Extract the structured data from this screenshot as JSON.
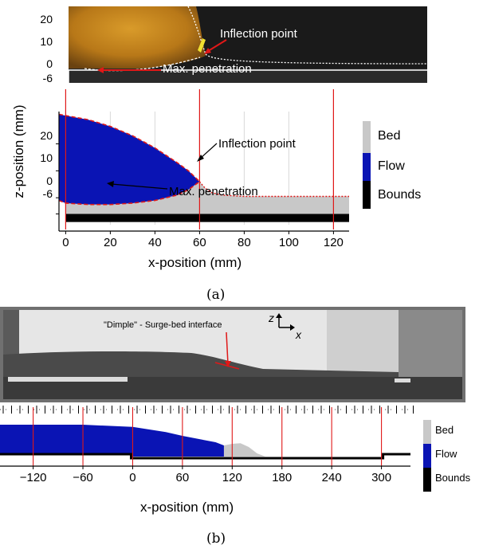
{
  "panel_a": {
    "caption": "(a)",
    "photo": {
      "yticks": [
        "20",
        "10",
        "0",
        "-6"
      ],
      "annotations": {
        "inflection": "Inflection point",
        "max_pen": "Max. penetration"
      },
      "colors": {
        "flow": "#c8861c",
        "background": "#1a1a1a",
        "dash": "#ffffff",
        "arrow": "#e01818"
      }
    },
    "chart_data": {
      "type": "area",
      "title": "",
      "xlabel": "x-position (mm)",
      "ylabel": "z-position (mm)",
      "xlim": [
        -3,
        127
      ],
      "ylim": [
        -10,
        32
      ],
      "xticks": [
        0,
        20,
        40,
        60,
        80,
        100,
        120
      ],
      "yticks": [
        20,
        10,
        0,
        -6
      ],
      "ytick_labels": [
        "20",
        "10",
        "0",
        "-6"
      ],
      "grid": true,
      "legend": {
        "placement": "right",
        "entries": [
          "Bed",
          "Flow",
          "Bounds"
        ],
        "colors": [
          "#c8c8c8",
          "#0a14b4",
          "#000000"
        ]
      },
      "red_lines_x": [
        0,
        60,
        120
      ],
      "flow_upper": {
        "x": [
          -3,
          0,
          10,
          20,
          30,
          40,
          50,
          55,
          60
        ],
        "z": [
          31,
          30.5,
          29,
          26.5,
          23,
          18.5,
          13,
          10,
          6
        ]
      },
      "flow_lower": {
        "x": [
          -3,
          0,
          10,
          20,
          30,
          40,
          50,
          55,
          60
        ],
        "z": [
          -1,
          -2,
          -2.5,
          -2.5,
          -2,
          -1,
          1,
          3,
          6
        ]
      },
      "bed_surface": {
        "x": [
          60,
          62,
          65,
          70,
          80,
          100,
          127
        ],
        "z": [
          6,
          4,
          2,
          1,
          0.5,
          0.5,
          0.5
        ]
      },
      "bed_bottom_z": -6,
      "bounds_z": [
        -9,
        -6
      ],
      "annotations": {
        "inflection": "Inflection point",
        "max_pen": "Max. penetration"
      }
    }
  },
  "panel_b": {
    "caption": "(b)",
    "photo": {
      "annotation": "\"Dimple\" - Surge-bed interface",
      "axes_label_z": "z",
      "axes_label_x": "x"
    },
    "chart_data": {
      "type": "area",
      "title": "",
      "xlabel": "x-position (mm)",
      "ylabel": "",
      "xlim": [
        -160,
        335
      ],
      "xticks": [
        -120,
        -60,
        0,
        60,
        120,
        180,
        240,
        300
      ],
      "xtick_labels": [
        "−120",
        "−60",
        "0",
        "60",
        "120",
        "180",
        "240",
        "300"
      ],
      "legend": {
        "placement": "right",
        "entries": [
          "Bed",
          "Flow",
          "Bounds"
        ],
        "colors": [
          "#c8c8c8",
          "#0a14b4",
          "#000000"
        ]
      },
      "red_lines_x": [
        -120,
        -60,
        0,
        60,
        120,
        180,
        240,
        300
      ],
      "flow_upper": {
        "x": [
          -160,
          -60,
          0,
          40,
          60,
          80,
          100,
          110
        ],
        "z": [
          1.0,
          1.0,
          0.93,
          0.77,
          0.65,
          0.55,
          0.45,
          0.35
        ]
      },
      "bed_surface": {
        "x": [
          110,
          120,
          130,
          140,
          150,
          160,
          320
        ],
        "z": [
          0.35,
          0.4,
          0.42,
          0.3,
          0.1,
          0.0,
          0.0
        ]
      }
    }
  }
}
